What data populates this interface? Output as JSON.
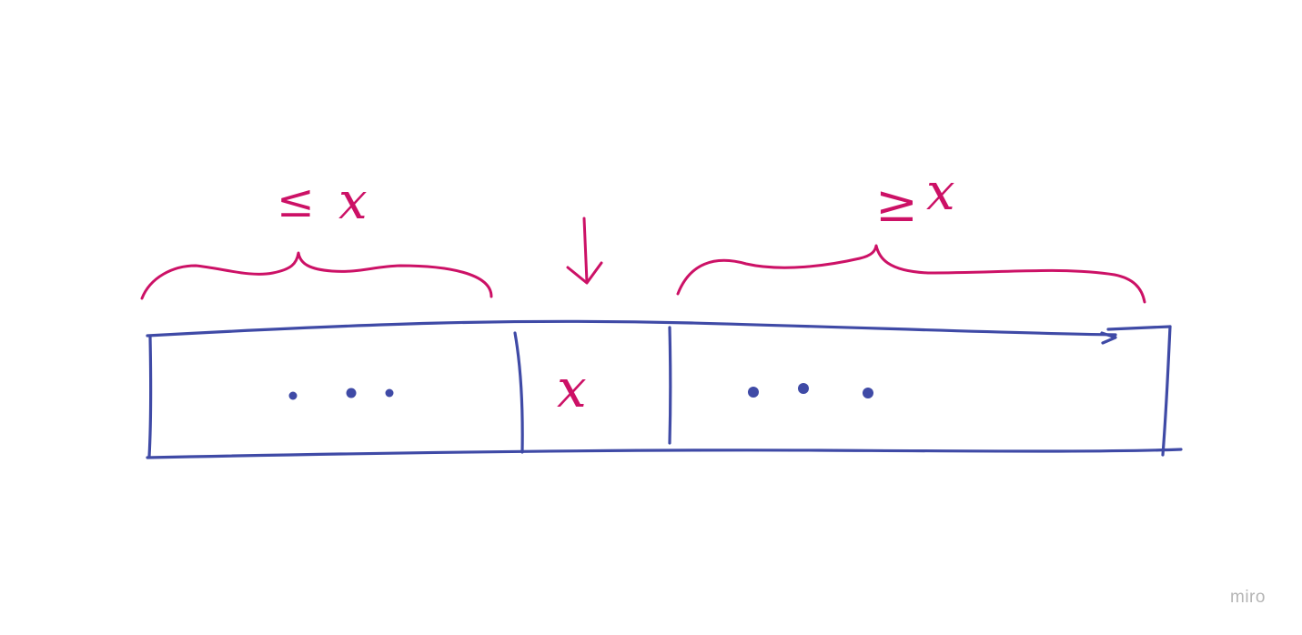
{
  "diagram": {
    "left_label": {
      "symbol": "≤",
      "variable": "x"
    },
    "right_label": {
      "symbol": "≥",
      "variable": "x"
    },
    "pivot_label": "x",
    "left_cell_ellipsis": "• • •",
    "right_cell_ellipsis": "• • •"
  },
  "colors": {
    "array_ink": "#3f4aa6",
    "annotation_ink": "#cc1166",
    "watermark": "#b5b5b5"
  },
  "watermark": {
    "text": "miro"
  }
}
